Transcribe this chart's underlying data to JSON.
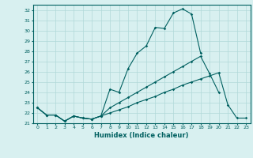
{
  "xlabel": "Humidex (Indice chaleur)",
  "ylabel": "",
  "background_color": "#d8f0f0",
  "grid_color": "#b0d8d8",
  "line_color": "#006060",
  "x": [
    0,
    1,
    2,
    3,
    4,
    5,
    6,
    7,
    8,
    9,
    10,
    11,
    12,
    13,
    14,
    15,
    16,
    17,
    18,
    19,
    20,
    21,
    22,
    23
  ],
  "line1": [
    22.5,
    21.8,
    21.8,
    21.2,
    21.7,
    21.5,
    21.4,
    21.7,
    24.3,
    24.0,
    26.3,
    27.8,
    28.5,
    30.3,
    30.2,
    31.7,
    32.1,
    31.6,
    27.8,
    null,
    null,
    null,
    null,
    null
  ],
  "line2": [
    22.5,
    21.8,
    21.8,
    21.2,
    21.7,
    21.5,
    21.4,
    21.7,
    22.5,
    23.0,
    23.5,
    24.0,
    24.5,
    25.0,
    25.5,
    26.0,
    26.5,
    27.0,
    27.5,
    25.8,
    24.0,
    null,
    null,
    null
  ],
  "line3": [
    22.5,
    21.8,
    21.8,
    21.2,
    21.7,
    21.5,
    21.4,
    21.7,
    22.0,
    22.3,
    22.6,
    23.0,
    23.3,
    23.6,
    24.0,
    24.3,
    24.7,
    25.0,
    25.3,
    25.6,
    25.9,
    22.8,
    21.5,
    21.5
  ],
  "xlim": [
    -0.5,
    23.5
  ],
  "ylim": [
    21,
    32.5
  ],
  "yticks": [
    21,
    22,
    23,
    24,
    25,
    26,
    27,
    28,
    29,
    30,
    31,
    32
  ],
  "xticks": [
    0,
    1,
    2,
    3,
    4,
    5,
    6,
    7,
    8,
    9,
    10,
    11,
    12,
    13,
    14,
    15,
    16,
    17,
    18,
    19,
    20,
    21,
    22,
    23
  ]
}
